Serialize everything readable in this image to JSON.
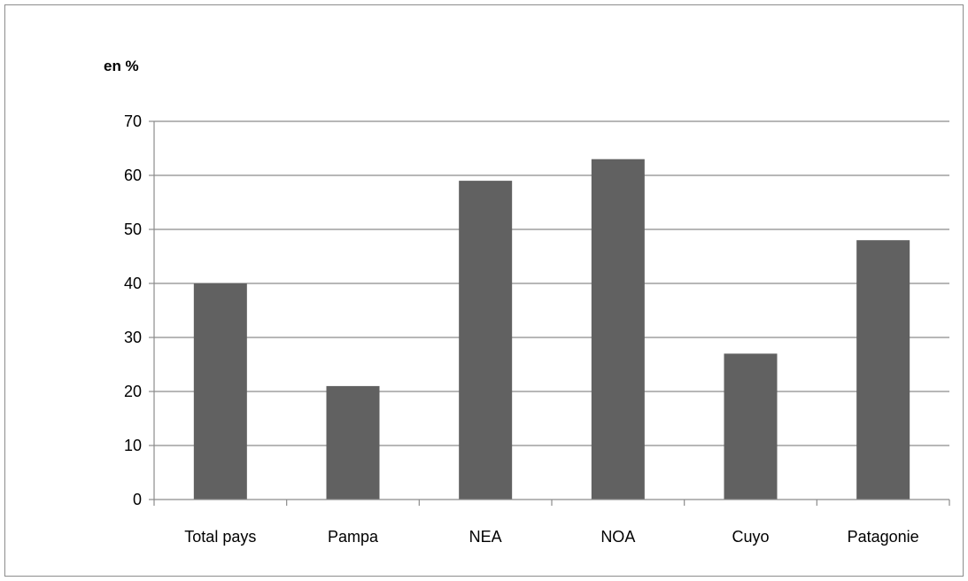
{
  "chart_data": {
    "type": "bar",
    "title": "",
    "unit_label": "en  %",
    "xlabel": "",
    "ylabel": "",
    "categories": [
      "Total pays",
      "Pampa",
      "NEA",
      "NOA",
      "Cuyo",
      "Patagonie"
    ],
    "values": [
      40,
      21,
      59,
      63,
      27,
      48
    ],
    "ylim": [
      0,
      70
    ],
    "yticks": [
      0,
      10,
      20,
      30,
      40,
      50,
      60,
      70
    ],
    "grid": true,
    "legend": "none",
    "colors": {
      "bar": "#616161",
      "grid": "#8c8c8c",
      "axis": "#8c8c8c"
    }
  }
}
